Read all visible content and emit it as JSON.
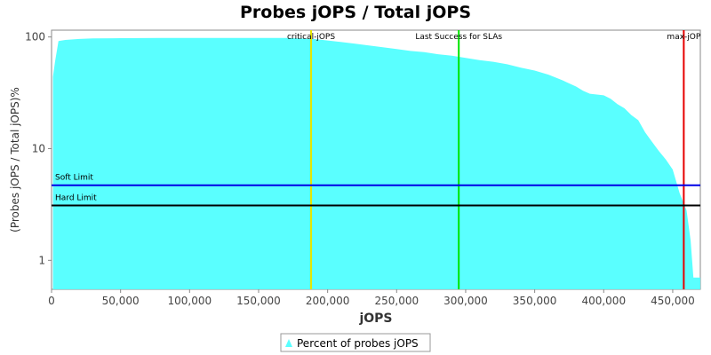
{
  "chart_data": {
    "type": "area",
    "title": "Probes jOPS / Total jOPS",
    "xlabel": "jOPS",
    "ylabel": "(Probes jOPS / Total jOPS)%",
    "xlim": [
      0,
      470000
    ],
    "ylim": [
      0.55,
      115
    ],
    "yscale": "log",
    "x_ticks": [
      0,
      50000,
      100000,
      150000,
      200000,
      250000,
      300000,
      350000,
      400000,
      450000
    ],
    "x_tick_labels": [
      "0",
      "50,000",
      "100,000",
      "150,000",
      "200,000",
      "250,000",
      "300,000",
      "350,000",
      "400,000",
      "450,000"
    ],
    "y_ticks": [
      1,
      10,
      100
    ],
    "y_tick_labels": [
      "1",
      "10",
      "100"
    ],
    "grid": false,
    "legend_position": "bottom-center",
    "colors": {
      "area": "#5affff",
      "critical_jops": "#e6e600",
      "last_success": "#00e600",
      "max_jop": "#e60000",
      "soft_limit": "#0000e6",
      "hard_limit": "#000000"
    },
    "series": [
      {
        "name": "Percent of probes jOPS",
        "x": [
          1000,
          2500,
          5000,
          10000,
          20000,
          30000,
          50000,
          80000,
          120000,
          150000,
          170000,
          190000,
          200000,
          210000,
          220000,
          230000,
          240000,
          250000,
          260000,
          270000,
          280000,
          290000,
          300000,
          310000,
          320000,
          330000,
          340000,
          350000,
          360000,
          370000,
          380000,
          385000,
          390000,
          400000,
          405000,
          410000,
          415000,
          420000,
          425000,
          430000,
          435000,
          440000,
          445000,
          450000,
          455000,
          460000,
          463000,
          465000,
          470000
        ],
        "y": [
          44,
          60,
          92,
          94,
          96,
          97,
          97.5,
          98,
          98,
          98,
          98,
          96,
          93,
          90,
          87,
          84,
          81,
          78,
          75,
          73,
          70,
          68,
          65,
          62,
          60,
          57,
          53,
          50,
          46,
          41,
          36,
          33,
          31,
          30,
          28,
          25,
          23,
          20,
          18,
          14,
          11.5,
          9.5,
          8,
          6.5,
          4,
          2.8,
          1.5,
          0.7,
          0.7
        ]
      }
    ],
    "markers": [
      {
        "label": "critical-jOPS",
        "x": 188000,
        "color": "#e6e600"
      },
      {
        "label": "Last Success for SLAs",
        "x": 295000,
        "color": "#00e600"
      },
      {
        "label": "max-jOP",
        "x": 458000,
        "color": "#e60000"
      }
    ],
    "limits": [
      {
        "label": "Soft Limit",
        "y": 4.7,
        "color": "#0000e6"
      },
      {
        "label": "Hard Limit",
        "y": 3.1,
        "color": "#000000"
      }
    ]
  }
}
